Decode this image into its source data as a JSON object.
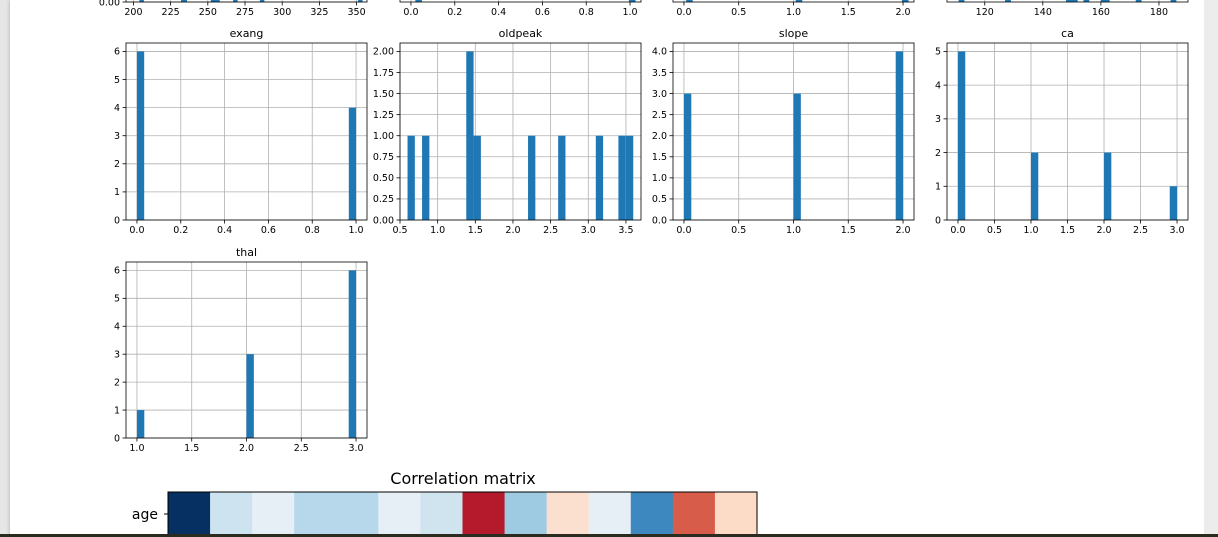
{
  "colors": {
    "bar": "#1f77b4",
    "grid": "#b0b0b0",
    "axes": "#000000"
  },
  "chart_data": [
    {
      "type": "bar",
      "title": "",
      "partial": true,
      "xlim": [
        195,
        357
      ],
      "ylim": [
        0,
        1
      ],
      "x_ticks": [
        200,
        225,
        250,
        275,
        300,
        325,
        350
      ],
      "y_ticks": [
        0
      ],
      "y_tick_labels": [
        "0.00"
      ],
      "x_tick_labels": [
        "200",
        "225",
        "250",
        "275",
        "300",
        "325",
        "350"
      ],
      "bars": [
        {
          "x": 204,
          "w": 3,
          "y": 0.1
        },
        {
          "x": 232,
          "w": 4,
          "y": 0.1
        },
        {
          "x": 252,
          "w": 6,
          "y": 0.1
        },
        {
          "x": 267,
          "w": 3,
          "y": 0.1
        },
        {
          "x": 285,
          "w": 3,
          "y": 0.1
        },
        {
          "x": 351,
          "w": 3,
          "y": 0.1
        }
      ]
    },
    {
      "type": "bar",
      "title": "",
      "partial": true,
      "xlim": [
        -0.05,
        1.05
      ],
      "ylim": [
        0,
        1
      ],
      "x_ticks": [
        0,
        0.2,
        0.4,
        0.6,
        0.8,
        1.0
      ],
      "y_ticks": [],
      "y_tick_labels": [],
      "x_tick_labels": [
        "0.0",
        "0.2",
        "0.4",
        "0.6",
        "0.8",
        "1.0"
      ],
      "bars": [
        {
          "x": 0.02,
          "w": 0.03,
          "y": 0.1
        },
        {
          "x": 0.995,
          "w": 0.03,
          "y": 0.1
        }
      ]
    },
    {
      "type": "bar",
      "title": "",
      "partial": true,
      "xlim": [
        -0.1,
        2.1
      ],
      "ylim": [
        0,
        1
      ],
      "x_ticks": [
        0,
        0.5,
        1.0,
        1.5,
        2.0
      ],
      "y_ticks": [],
      "y_tick_labels": [],
      "x_tick_labels": [
        "0.0",
        "0.5",
        "1.0",
        "1.5",
        "2.0"
      ],
      "bars": [
        {
          "x": 0.02,
          "w": 0.06,
          "y": 0.1
        },
        {
          "x": 1.02,
          "w": 0.06,
          "y": 0.1
        },
        {
          "x": 1.99,
          "w": 0.06,
          "y": 0.1
        }
      ]
    },
    {
      "type": "bar",
      "title": "",
      "partial": true,
      "xlim": [
        107,
        190
      ],
      "ylim": [
        0,
        1
      ],
      "x_ticks": [
        120,
        140,
        160,
        180
      ],
      "y_ticks": [],
      "y_tick_labels": [],
      "x_tick_labels": [
        "120",
        "140",
        "160",
        "180"
      ],
      "bars": [
        {
          "x": 111,
          "w": 2,
          "y": 0.1
        },
        {
          "x": 127,
          "w": 2,
          "y": 0.1
        },
        {
          "x": 148,
          "w": 4,
          "y": 0.1
        },
        {
          "x": 154,
          "w": 2,
          "y": 0.1
        },
        {
          "x": 160,
          "w": 3,
          "y": 0.1
        },
        {
          "x": 172,
          "w": 2,
          "y": 0.1
        },
        {
          "x": 184,
          "w": 2,
          "y": 0.1
        }
      ]
    },
    {
      "type": "bar",
      "title": "exang",
      "xlim": [
        -0.05,
        1.05
      ],
      "ylim": [
        0,
        6.3
      ],
      "x_ticks": [
        0,
        0.2,
        0.4,
        0.6,
        0.8,
        1.0
      ],
      "y_ticks": [
        0,
        1,
        2,
        3,
        4,
        5,
        6
      ],
      "x_tick_labels": [
        "0.0",
        "0.2",
        "0.4",
        "0.6",
        "0.8",
        "1.0"
      ],
      "y_tick_labels": [
        "0",
        "1",
        "2",
        "3",
        "4",
        "5",
        "6"
      ],
      "bars": [
        {
          "x": 0.0,
          "w": 0.033,
          "y": 6
        },
        {
          "x": 0.967,
          "w": 0.033,
          "y": 4
        }
      ]
    },
    {
      "type": "bar",
      "title": "oldpeak",
      "xlim": [
        0.5,
        3.7
      ],
      "ylim": [
        0,
        2.1
      ],
      "x_ticks": [
        0.5,
        1.0,
        1.5,
        2.0,
        2.5,
        3.0,
        3.5
      ],
      "y_ticks": [
        0,
        0.25,
        0.5,
        0.75,
        1.0,
        1.25,
        1.5,
        1.75,
        2.0
      ],
      "x_tick_labels": [
        "0.5",
        "1.0",
        "1.5",
        "2.0",
        "2.5",
        "3.0",
        "3.5"
      ],
      "y_tick_labels": [
        "0.00",
        "0.25",
        "0.50",
        "0.75",
        "1.00",
        "1.25",
        "1.50",
        "1.75",
        "2.00"
      ],
      "bars": [
        {
          "x": 0.6,
          "w": 0.097,
          "y": 1
        },
        {
          "x": 0.793,
          "w": 0.097,
          "y": 1
        },
        {
          "x": 1.38,
          "w": 0.097,
          "y": 2
        },
        {
          "x": 1.477,
          "w": 0.097,
          "y": 1
        },
        {
          "x": 2.2,
          "w": 0.097,
          "y": 1
        },
        {
          "x": 2.6,
          "w": 0.097,
          "y": 1
        },
        {
          "x": 3.1,
          "w": 0.097,
          "y": 1
        },
        {
          "x": 3.4,
          "w": 0.097,
          "y": 1
        },
        {
          "x": 3.5,
          "w": 0.097,
          "y": 1
        }
      ]
    },
    {
      "type": "bar",
      "title": "slope",
      "xlim": [
        -0.1,
        2.1
      ],
      "ylim": [
        0,
        4.2
      ],
      "x_ticks": [
        0,
        0.5,
        1.0,
        1.5,
        2.0
      ],
      "y_ticks": [
        0,
        0.5,
        1.0,
        1.5,
        2.0,
        2.5,
        3.0,
        3.5,
        4.0
      ],
      "x_tick_labels": [
        "0.0",
        "0.5",
        "1.0",
        "1.5",
        "2.0"
      ],
      "y_tick_labels": [
        "0.0",
        "0.5",
        "1.0",
        "1.5",
        "2.0",
        "2.5",
        "3.0",
        "3.5",
        "4.0"
      ],
      "bars": [
        {
          "x": 0.0,
          "w": 0.067,
          "y": 3
        },
        {
          "x": 1.0,
          "w": 0.067,
          "y": 3
        },
        {
          "x": 1.933,
          "w": 0.067,
          "y": 4
        }
      ]
    },
    {
      "type": "bar",
      "title": "ca",
      "xlim": [
        -0.15,
        3.15
      ],
      "ylim": [
        0,
        5.25
      ],
      "x_ticks": [
        0,
        0.5,
        1.0,
        1.5,
        2.0,
        2.5,
        3.0
      ],
      "y_ticks": [
        0,
        1,
        2,
        3,
        4,
        5
      ],
      "x_tick_labels": [
        "0.0",
        "0.5",
        "1.0",
        "1.5",
        "2.0",
        "2.5",
        "3.0"
      ],
      "y_tick_labels": [
        "0",
        "1",
        "2",
        "3",
        "4",
        "5"
      ],
      "bars": [
        {
          "x": 0.0,
          "w": 0.1,
          "y": 5
        },
        {
          "x": 1.0,
          "w": 0.1,
          "y": 2
        },
        {
          "x": 2.0,
          "w": 0.1,
          "y": 2
        },
        {
          "x": 2.9,
          "w": 0.1,
          "y": 1
        }
      ]
    },
    {
      "type": "bar",
      "title": "thal",
      "xlim": [
        0.9,
        3.1
      ],
      "ylim": [
        0,
        6.3
      ],
      "x_ticks": [
        1.0,
        1.5,
        2.0,
        2.5,
        3.0
      ],
      "y_ticks": [
        0,
        1,
        2,
        3,
        4,
        5,
        6
      ],
      "x_tick_labels": [
        "1.0",
        "1.5",
        "2.0",
        "2.5",
        "3.0"
      ],
      "y_tick_labels": [
        "0",
        "1",
        "2",
        "3",
        "4",
        "5",
        "6"
      ],
      "bars": [
        {
          "x": 1.0,
          "w": 0.067,
          "y": 1
        },
        {
          "x": 2.0,
          "w": 0.067,
          "y": 3
        },
        {
          "x": 2.933,
          "w": 0.067,
          "y": 6
        }
      ]
    },
    {
      "type": "heatmap",
      "title": "Correlation matrix",
      "row_labels": [
        "age"
      ],
      "cells": [
        "#053061",
        "#cde3f0",
        "#e6eff6",
        "#b7d8ea",
        "#b7d8ea",
        "#e6eff6",
        "#d0e4f0",
        "#b41a2c",
        "#9ecbe2",
        "#fbe0d0",
        "#e7eff6",
        "#3d88bf",
        "#d75d4a",
        "#fcdcc6"
      ]
    }
  ]
}
